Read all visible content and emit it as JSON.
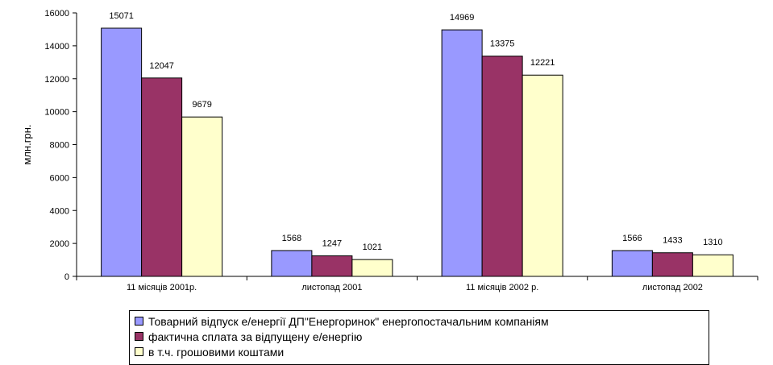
{
  "chart_data": {
    "type": "bar",
    "ylabel": "млн.грн.",
    "ylim": [
      0,
      16000
    ],
    "yticks": [
      0,
      2000,
      4000,
      6000,
      8000,
      10000,
      12000,
      14000,
      16000
    ],
    "categories": [
      "11 місяців 2001р.",
      "листопад 2001",
      "11 місяців 2002 р.",
      "листопад 2002"
    ],
    "series": [
      {
        "name": "Товарний відпуск е/енергії  ДП\"Енергоринок\" енергопостачальним компаніям",
        "color": "#9999ff",
        "values": [
          15071,
          1568,
          14969,
          1566
        ]
      },
      {
        "name": "фактична сплата за відпущену е/енергію",
        "color": "#993366",
        "values": [
          12047,
          1247,
          13375,
          1433
        ]
      },
      {
        "name": "в т.ч. грошовими коштами",
        "color": "#ffffcc",
        "values": [
          9679,
          1021,
          12221,
          1310
        ]
      }
    ],
    "legend": "bottom",
    "grid": false
  }
}
